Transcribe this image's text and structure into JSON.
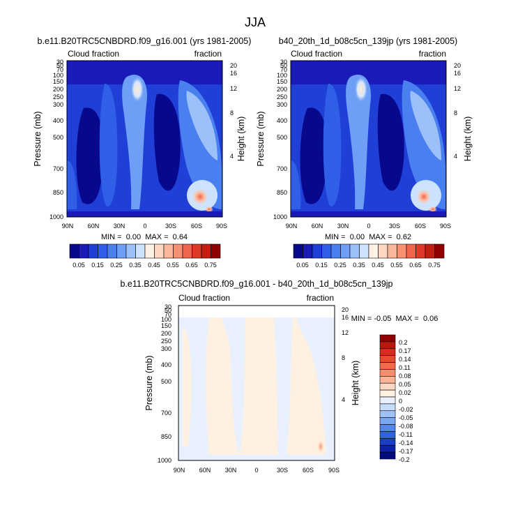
{
  "page_title": "JJA",
  "chart_data": [
    {
      "type": "heatmap",
      "id": "model1",
      "title": "b.e11.B20TRC5CNBDRD.f09_g16.001 (yrs 1981-2005)",
      "left_label": "Cloud fraction",
      "right_label": "fraction",
      "xlabel": "",
      "ylabel": "Pressure (mb)",
      "ylabel_right": "Height (km)",
      "x_ticks": [
        "90N",
        "60N",
        "30N",
        "0",
        "30S",
        "60S",
        "90S"
      ],
      "y_ticks": [
        "30",
        "50",
        "70",
        "100",
        "150",
        "200",
        "250",
        "300",
        "400",
        "500",
        "700",
        "850",
        "1000"
      ],
      "y_ticks_right": [
        "20",
        "16",
        "12",
        "8",
        "4"
      ],
      "xlim": [
        90,
        -90
      ],
      "ylim": [
        1000,
        30
      ],
      "stats": "MIN =  0.00  MAX =  0.64",
      "min": 0.0,
      "max": 0.64
    },
    {
      "type": "heatmap",
      "id": "model2",
      "title": "b40_20th_1d_b08c5cn_139jp (yrs 1981-2005)",
      "left_label": "Cloud fraction",
      "right_label": "fraction",
      "xlabel": "",
      "ylabel": "Pressure (mb)",
      "ylabel_right": "Height (km)",
      "x_ticks": [
        "90N",
        "60N",
        "30N",
        "0",
        "30S",
        "60S",
        "90S"
      ],
      "y_ticks": [
        "30",
        "50",
        "70",
        "100",
        "150",
        "200",
        "250",
        "300",
        "400",
        "500",
        "700",
        "850",
        "1000"
      ],
      "y_ticks_right": [
        "20",
        "16",
        "12",
        "8",
        "4"
      ],
      "xlim": [
        90,
        -90
      ],
      "ylim": [
        1000,
        30
      ],
      "stats": "MIN =  0.00  MAX =  0.62",
      "min": 0.0,
      "max": 0.62
    },
    {
      "type": "heatmap",
      "id": "difference",
      "title": "b.e11.B20TRC5CNBDRD.f09_g16.001 - b40_20th_1d_b08c5cn_139jp",
      "left_label": "Cloud fraction",
      "right_label": "fraction",
      "xlabel": "",
      "ylabel": "Pressure (mb)",
      "ylabel_right": "Height (km)",
      "x_ticks": [
        "90N",
        "60N",
        "30N",
        "0",
        "30S",
        "60S",
        "90S"
      ],
      "y_ticks": [
        "30",
        "50",
        "70",
        "100",
        "150",
        "200",
        "250",
        "300",
        "400",
        "500",
        "700",
        "850",
        "1000"
      ],
      "y_ticks_right": [
        "20",
        "16",
        "12",
        "8",
        "4"
      ],
      "xlim": [
        90,
        -90
      ],
      "ylim": [
        1000,
        30
      ],
      "stats": "MIN = -0.05  MAX =  0.06",
      "min": -0.05,
      "max": 0.06
    }
  ],
  "colorbar_main": {
    "labels": [
      "0.05",
      "0.15",
      "0.25",
      "0.35",
      "0.45",
      "0.55",
      "0.65",
      "0.75"
    ],
    "colors": [
      "#08088c",
      "#1a1ab8",
      "#1f3fd6",
      "#2f5fe6",
      "#4a7ff0",
      "#6e9ef6",
      "#9cc0fa",
      "#cde3fd",
      "#fff2e4",
      "#fdd7c0",
      "#fcb69a",
      "#f99072",
      "#f0654c",
      "#de3a28",
      "#c21e12",
      "#900000"
    ]
  },
  "colorbar_diff": {
    "labels": [
      "0.2",
      "0.17",
      "0.14",
      "0.11",
      "0.08",
      "0.05",
      "0.02",
      "0",
      "-0.02",
      "-0.05",
      "-0.08",
      "-0.11",
      "-0.14",
      "-0.17",
      "-0.2"
    ],
    "colors": [
      "#900000",
      "#b41a0e",
      "#d2301c",
      "#ea4a2c",
      "#f56a48",
      "#f98e6c",
      "#fbb496",
      "#fdd8c2",
      "#fff1e2",
      "#e8f1fd",
      "#c6dcfb",
      "#9ec2f8",
      "#7aa6f2",
      "#5487ea",
      "#3262de",
      "#1a3ec8",
      "#0c22a6",
      "#020a80"
    ]
  }
}
